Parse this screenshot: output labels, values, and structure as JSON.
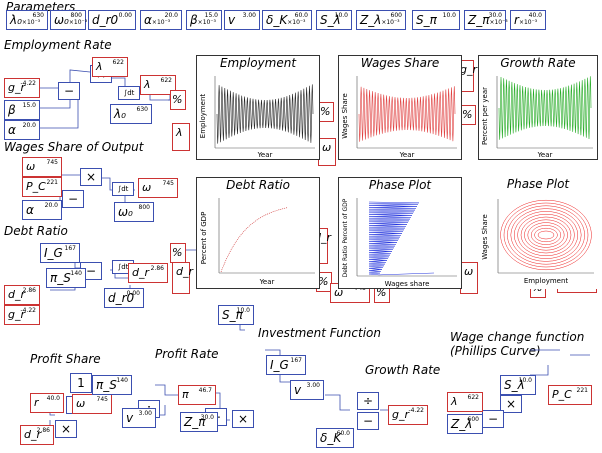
{
  "sections": {
    "parameters": "Parameters",
    "employment_rate": "Employment Rate",
    "wages_share_output": "Wages Share of Output",
    "debt_ratio": "Debt Ratio",
    "profit_share": "Profit Share",
    "profit_rate": "Profit Rate",
    "investment_function": "Investment Function",
    "growth_rate": "Growth Rate",
    "wage_change_line1": "Wage change function",
    "wage_change_line2": "(Phillips Curve)"
  },
  "parameters": [
    {
      "symbol": "λ₀",
      "sub": "×10⁻³",
      "value": "630"
    },
    {
      "symbol": "ω₀",
      "sub": "×10⁻³",
      "value": "800"
    },
    {
      "symbol": "d_r0",
      "sub": "",
      "value": "0.00"
    },
    {
      "symbol": "α",
      "sub": "×10⁻³",
      "value": "20.0"
    },
    {
      "symbol": "β",
      "sub": "×10⁻³",
      "value": "15.0"
    },
    {
      "symbol": "v",
      "sub": "",
      "value": "3.00"
    },
    {
      "symbol": "δ_K",
      "sub": "×10⁻³",
      "value": "60.0"
    },
    {
      "symbol": "S_λ",
      "sub": "",
      "value": "10.0"
    },
    {
      "symbol": "Z_λ",
      "sub": "×10⁻³",
      "value": "600"
    },
    {
      "symbol": "S_π",
      "sub": "",
      "value": "10.0"
    },
    {
      "symbol": "Z_π",
      "sub": "×10⁻³",
      "value": "30.0"
    },
    {
      "symbol": "r",
      "sub": "×10⁻³",
      "value": "40.0"
    }
  ],
  "nodes": {
    "gr": "g_r",
    "gr_val": "-4.22",
    "lambda": "λ",
    "lambda_val": "622",
    "beta": "β",
    "beta_val": "15.0",
    "alpha": "α",
    "alpha_val": "20.0",
    "lambda0": "λ₀",
    "lambda0_val": "630",
    "omega": "ω",
    "omega_val": "745",
    "Pc": "P_C",
    "Pc_val": "221",
    "omega0": "ω₀",
    "omega0_val": "800",
    "IG": "I_G",
    "IG_val": "167",
    "pis": "π_S",
    "pis_val": "140",
    "dr": "d_r",
    "dr_val": "2.86",
    "dr0": "d_r0",
    "dr0_val": "0.00",
    "one": "1",
    "r": "r",
    "r_val": "40.0",
    "pi": "π",
    "pi_val": "46.7",
    "v": "v",
    "v_val": "3.00",
    "Zpi": "Z_π",
    "Zpi_val": "30.0",
    "Spi": "S_π",
    "Spi_val": "10.0",
    "deltaK": "δ_K",
    "deltaK_val": "60.0",
    "Slambda": "S_λ",
    "Slambda_val": "10.0",
    "Zlambda": "Z_λ",
    "Zlambda_val": "600",
    "scale": "×10⁻³",
    "percent": "%",
    "integral": "∫dt",
    "gr_side": "g_r",
    "gr_side_val": "-4.22"
  },
  "plots": {
    "employment": {
      "title": "Employment",
      "xlabel": "Year",
      "ylabel": "Employment"
    },
    "wages": {
      "title": "Wages Share",
      "xlabel": "Year",
      "ylabel": "Wages Share"
    },
    "growth": {
      "title": "Growth Rate",
      "xlabel": "Year",
      "ylabel": "Percent per year"
    },
    "debt": {
      "title": "Debt Ratio",
      "xlabel": "Year",
      "ylabel": "Percent of GDP"
    },
    "phase1": {
      "title": "Phase Plot",
      "xlabel": "Wages share",
      "ylabel": "Debt Ratio Percent of GDP"
    },
    "phase2": {
      "title": "Phase Plot",
      "xlabel": "Employment",
      "ylabel": "Wages Share"
    }
  },
  "colors": {
    "param_border": "#3b4fb0",
    "flow_border": "#cc3333",
    "employment": "#222222",
    "wages": "#e04040",
    "growth": "#22aa22",
    "debt": "#cc2222",
    "phase1": "#2233dd",
    "phase2": "#ee2222"
  }
}
